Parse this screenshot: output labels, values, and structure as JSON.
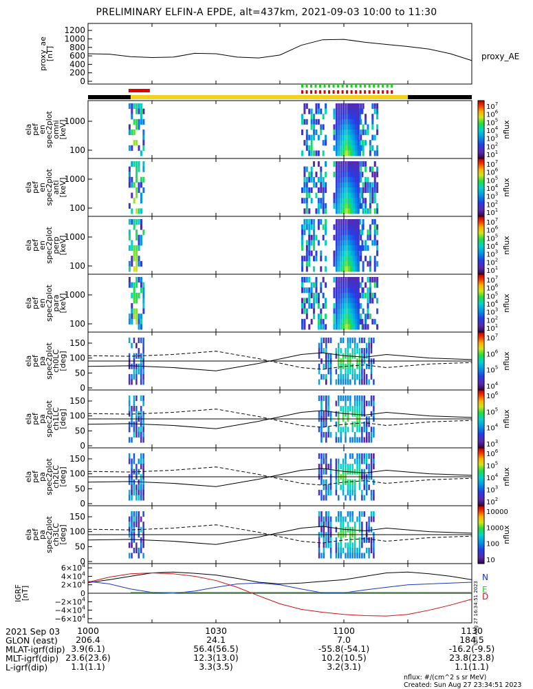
{
  "title": "PRELIMINARY ELFIN-A EPDE, alt=437km, 2021-09-03 10:00 to 11:30",
  "colors": {
    "axis": "#000000",
    "status_yellow": "#f5d21a",
    "status_black": "#000000",
    "marker_red": "#e00000",
    "marker_green": "#22cc22",
    "grf_n": "#000000",
    "grf_e": "#1a34c8",
    "grf_d": "#d01010",
    "grf_green": "#22cc22"
  },
  "panels": {
    "ae": {
      "ylabel": [
        "proxy_ae",
        "[nT]"
      ],
      "side_label": "proxy_AE",
      "ticks": [
        "1200",
        "1000",
        "800",
        "600",
        "400",
        "200",
        "0"
      ]
    },
    "energy": [
      {
        "ylabel": [
          "ela",
          "pef",
          "en",
          "spec2plot",
          "omni",
          "[keV]"
        ],
        "ticks": [
          "1000",
          "100"
        ],
        "cb_label": "nflux",
        "cb_ticks": [
          "10^7",
          "10^6",
          "10^5",
          "10^4",
          "10^3",
          "10^2",
          "10^1"
        ]
      },
      {
        "ylabel": [
          "ela",
          "pef",
          "en",
          "spec2plot",
          "anti",
          "[keV]"
        ],
        "ticks": [
          "1000",
          "100"
        ],
        "cb_label": "nflux",
        "cb_ticks": [
          "10^7",
          "10^6",
          "10^5",
          "10^4",
          "10^3",
          "10^2",
          "10^1"
        ]
      },
      {
        "ylabel": [
          "ela",
          "pef",
          "en",
          "spec2plot",
          "perp",
          "[keV]"
        ],
        "ticks": [
          "1000",
          "100"
        ],
        "cb_label": "nflux",
        "cb_ticks": [
          "10^7",
          "10^6",
          "10^5",
          "10^4",
          "10^3",
          "10^2",
          "10^1"
        ]
      },
      {
        "ylabel": [
          "ela",
          "pef",
          "en",
          "spec2plot",
          "para",
          "[keV]"
        ],
        "ticks": [
          "1000",
          "100"
        ],
        "cb_label": "nflux",
        "cb_ticks": [
          "10^7",
          "10^6",
          "10^5",
          "10^4",
          "10^3",
          "10^2",
          "10^1"
        ]
      }
    ],
    "pitch": [
      {
        "ylabel": [
          "ela",
          "pef",
          "pa",
          "spec2plot",
          "ch0LC",
          "[deg]"
        ],
        "ticks": [
          "150",
          "100",
          "50",
          "0"
        ],
        "cb_label": "nflux",
        "cb_ticks": [
          "10^7",
          "10^6",
          "10^5",
          "10^4"
        ]
      },
      {
        "ylabel": [
          "ela",
          "pef",
          "pa",
          "spec2plot",
          "ch1LC",
          "[deg]"
        ],
        "ticks": [
          "150",
          "100",
          "50",
          "0"
        ],
        "cb_label": "nflux",
        "cb_ticks": [
          "10^6",
          "10^5",
          "10^4",
          "10^3"
        ]
      },
      {
        "ylabel": [
          "ela",
          "pef",
          "pa",
          "spec2plot",
          "ch2LC",
          "[deg]"
        ],
        "ticks": [
          "150",
          "100",
          "50",
          "0"
        ],
        "cb_label": "nflux",
        "cb_ticks": [
          "10^6",
          "10^5",
          "10^4",
          "10^3",
          "10^2"
        ]
      },
      {
        "ylabel": [
          "ela",
          "pef",
          "pa",
          "spec2plot",
          "ch3LC",
          "[deg]"
        ],
        "ticks": [
          "150",
          "100",
          "50",
          "0"
        ],
        "cb_label": "nflux",
        "cb_ticks": [
          "10000",
          "1000",
          "100",
          "10"
        ]
      }
    ],
    "grf": {
      "ylabel": [
        "IGRF",
        "[nT]"
      ],
      "ticks": [
        "6×10^4",
        "4×10^4",
        "2×10^4",
        "0",
        "−2×10^4",
        "−4×10^4",
        "−6×10^4"
      ],
      "legend": [
        "N",
        "E",
        "D"
      ],
      "stamp": "Sun Aug 27 16:34:51 2023"
    }
  },
  "chart_data": {
    "type": "heatmap",
    "title": "PRELIMINARY ELFIN-A EPDE, alt=437km, 2021-09-03 10:00 to 11:30",
    "x_range_minutes": [
      0,
      90
    ],
    "x_tick_labels": [
      "1000",
      "1030",
      "1100",
      "1130"
    ],
    "proxy_ae": {
      "ylim": [
        0,
        1300
      ],
      "x": [
        0,
        5,
        10,
        15,
        20,
        25,
        30,
        35,
        40,
        45,
        50,
        55,
        60,
        65,
        70,
        75,
        80,
        85,
        90
      ],
      "y": [
        650,
        640,
        580,
        560,
        570,
        660,
        650,
        570,
        550,
        620,
        850,
        980,
        990,
        920,
        870,
        820,
        760,
        650,
        490
      ]
    },
    "status_bar": [
      {
        "from": 0,
        "to": 10,
        "color": "black"
      },
      {
        "from": 10,
        "to": 75,
        "color": "yellow"
      },
      {
        "from": 75,
        "to": 90,
        "color": "black"
      }
    ],
    "science_zones": [
      {
        "from": 9.5,
        "to": 14.5
      },
      {
        "from": 50,
        "to": 60
      },
      {
        "from": 63,
        "to": 72
      }
    ],
    "bursts_energy": [
      {
        "from": 9.5,
        "to": 13
      },
      {
        "from": 50,
        "to": 56
      },
      {
        "from": 57.5,
        "to": 64.5
      },
      {
        "from": 61,
        "to": 68
      }
    ],
    "bursts_pitch": [
      {
        "from": 9.5,
        "to": 13
      },
      {
        "from": 54,
        "to": 57
      },
      {
        "from": 58,
        "to": 67
      }
    ],
    "loss_cone_deg": {
      "x": [
        0,
        10,
        20,
        30,
        40,
        50,
        55,
        60,
        65,
        70,
        80,
        90
      ],
      "y": [
        72,
        74,
        68,
        57,
        82,
        112,
        118,
        108,
        103,
        112,
        100,
        95
      ]
    },
    "anti_loss_cone_deg": {
      "x": [
        0,
        10,
        20,
        30,
        40,
        50,
        55,
        60,
        65,
        70,
        80,
        90
      ],
      "y": [
        108,
        106,
        112,
        123,
        98,
        68,
        62,
        72,
        77,
        68,
        80,
        85
      ]
    },
    "igrf": {
      "x": [
        0,
        5,
        10,
        15,
        20,
        25,
        30,
        35,
        40,
        45,
        50,
        55,
        60,
        65,
        70,
        75,
        80,
        85,
        90
      ],
      "N": [
        25000,
        32000,
        40000,
        48000,
        50000,
        47000,
        43000,
        35000,
        26000,
        22000,
        24000,
        28000,
        32000,
        40000,
        48000,
        50000,
        46000,
        40000,
        32000
      ],
      "E": [
        28000,
        22000,
        10000,
        2000,
        0,
        5000,
        14000,
        22000,
        24000,
        20000,
        10000,
        1000,
        1000,
        8000,
        14000,
        20000,
        22000,
        24000,
        26000
      ],
      "D": [
        26000,
        38000,
        46000,
        48000,
        46000,
        40000,
        30000,
        14000,
        -6000,
        -25000,
        -38000,
        -45000,
        -50000,
        -53000,
        -54000,
        -50000,
        -40000,
        -28000,
        -14000
      ]
    }
  },
  "footer": {
    "rows": [
      {
        "label": "2021 Sep 03",
        "values": [
          "1000",
          "1030",
          "1100",
          "1130"
        ]
      },
      {
        "label": "GLON (east)",
        "values": [
          "206.4",
          "24.1",
          "7.0",
          "184.5"
        ]
      },
      {
        "label": "MLAT-igrf(dip)",
        "values": [
          "3.9(6.1)",
          "56.4(56.5)",
          "-55.8(-54.1)",
          "-16.2(-9.5)"
        ]
      },
      {
        "label": "MLT-igrf(dip)",
        "values": [
          "23.6(23.6)",
          "12.3(13.0)",
          "10.2(10.5)",
          "23.8(23.8)"
        ]
      },
      {
        "label": "L-igrf(dip)",
        "values": [
          "1.1(1.1)",
          "3.3(3.5)",
          "3.2(3.1)",
          "1.1(1.1)"
        ]
      }
    ],
    "units": "nflux: #/(cm^2 s sr MeV)",
    "created": "Created: Sun Aug 27 23:34:51 2023"
  }
}
